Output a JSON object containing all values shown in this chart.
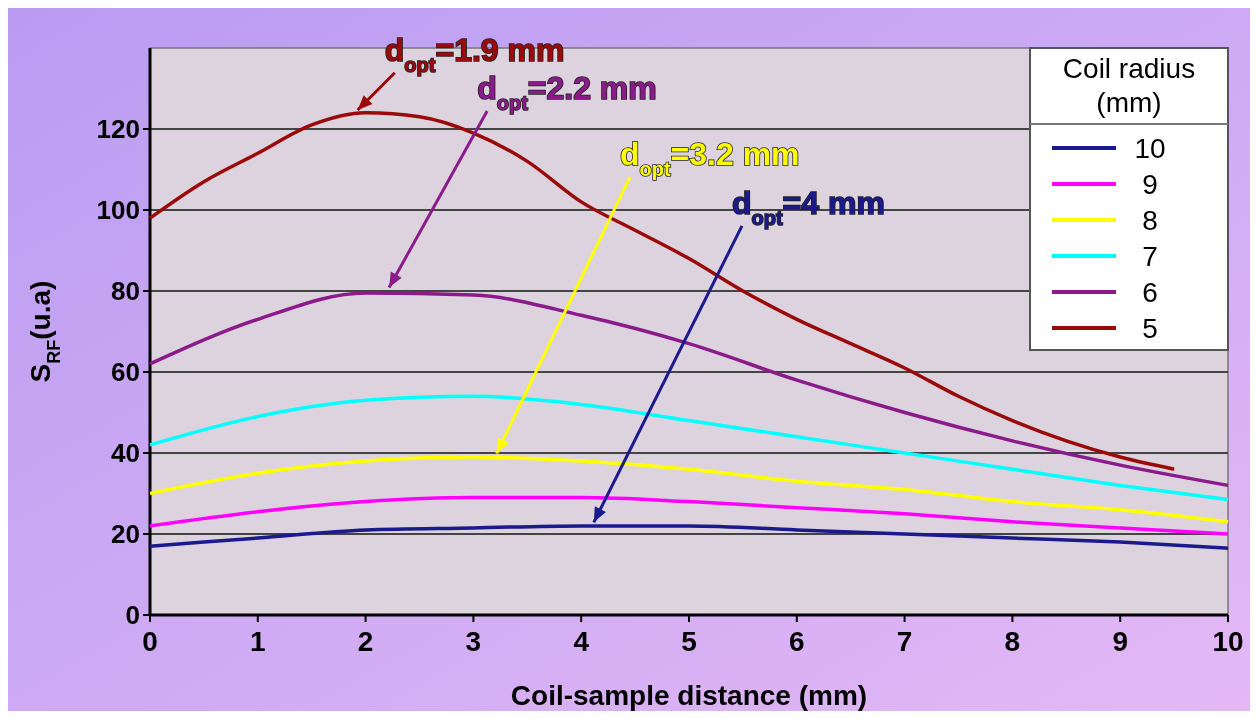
{
  "chart_data": {
    "type": "line",
    "xlabel": "Coil-sample distance (mm)",
    "ylabel": "S$_{RF}$(u.a)",
    "legend_title": "Coil radius (mm)",
    "xlim": [
      0,
      10
    ],
    "xticks": [
      0,
      1,
      2,
      3,
      4,
      5,
      6,
      7,
      8,
      9,
      10
    ],
    "ylim": [
      0,
      140
    ],
    "yticks": [
      0,
      20,
      40,
      60,
      80,
      100,
      120
    ],
    "grid": "y",
    "legend": "top right",
    "marker": "none",
    "line_style": "solid",
    "x": [
      0,
      1,
      2,
      3,
      4,
      5,
      6,
      7,
      8,
      9,
      10
    ],
    "series": [
      {
        "name": "10",
        "color": "#1a1a8c",
        "values": [
          17,
          19,
          21,
          21.5,
          22,
          22,
          21,
          20,
          19,
          18,
          16.5
        ]
      },
      {
        "name": "9",
        "color": "#ff00ff",
        "values": [
          22,
          25.5,
          28,
          29,
          29,
          28,
          26.5,
          25,
          23,
          21.5,
          20
        ]
      },
      {
        "name": "8",
        "color": "#ffff00",
        "values": [
          30,
          35,
          38,
          39,
          38,
          36,
          33,
          31,
          28,
          26,
          23
        ]
      },
      {
        "name": "7",
        "color": "#00ffff",
        "values": [
          42,
          49,
          53,
          54,
          52,
          48,
          44,
          40,
          36,
          32,
          28.5
        ]
      },
      {
        "name": "6",
        "color": "#8b1a8b",
        "values": [
          62,
          73,
          79.5,
          79,
          74,
          67,
          58,
          50,
          43,
          37,
          32
        ]
      },
      {
        "name": "5",
        "color": "#9b0a0a",
        "x": [
          0,
          0.5,
          1,
          1.5,
          2,
          2.5,
          3,
          3.5,
          4,
          4.5,
          5,
          5.5,
          6,
          6.5,
          7,
          7.5,
          8,
          8.5,
          9,
          9.5
        ],
        "values": [
          98,
          107,
          114,
          121,
          124,
          123,
          119,
          112,
          102,
          95,
          88,
          80,
          73,
          67,
          61,
          54,
          48,
          43,
          39,
          36
        ]
      }
    ],
    "annotations": [
      {
        "text": "d$_{opt}$=1.9 mm",
        "x": 1.9,
        "y": 124
      },
      {
        "text": "d$_{opt}$=2.2 mm",
        "x": 2.2,
        "y": 80
      },
      {
        "text": "d$_{opt}$=3.2 mm",
        "x": 3.2,
        "y": 39
      },
      {
        "text": "d$_{opt}$=4 mm",
        "x": 4.1,
        "y": 22
      }
    ]
  }
}
